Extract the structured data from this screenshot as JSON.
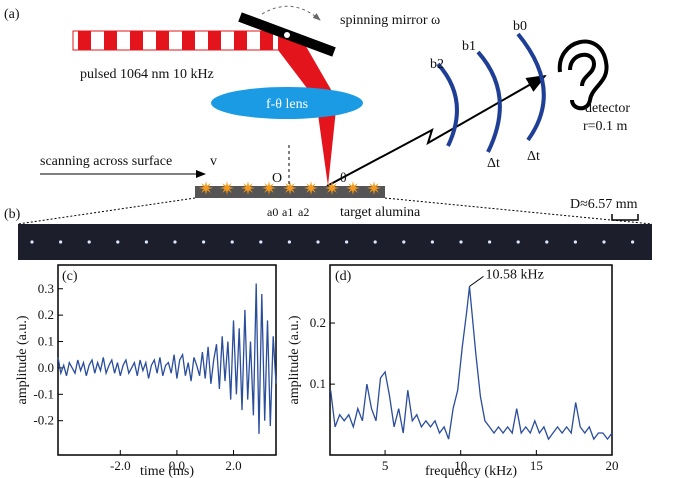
{
  "panel_labels": [
    "(a)",
    "(b)",
    "(c)",
    "(d)"
  ],
  "schematic": {
    "mirror": "spinning mirror ω",
    "laser": "pulsed 1064 nm 10 kHz",
    "lens": "f-θ lens",
    "scan": "scanning across surface",
    "velocity": "v",
    "origin": "O",
    "angle": "θ",
    "sites": [
      "a0",
      "a1",
      "a2"
    ],
    "target": "target alumina",
    "wavefronts": [
      "b2",
      "b1",
      "b0"
    ],
    "delays": [
      "Δt",
      "Δt"
    ],
    "detector": "detector",
    "distance": "r=0.1 m",
    "scale": "D≈6.57 mm"
  },
  "chart_data": [
    {
      "type": "line",
      "xlabel": "time (ms)",
      "ylabel": "amplitude (a.u.)",
      "color": "#2a4d9c",
      "xlim": [
        -4.2,
        3.5
      ],
      "ylim": [
        -0.33,
        0.39
      ],
      "xticks": [
        {
          "value": -2,
          "label": "-2.0"
        },
        {
          "value": 0,
          "label": "0.0"
        },
        {
          "value": 2,
          "label": "2.0"
        }
      ],
      "yticks": [
        0.3,
        0.2,
        0.1,
        {
          "value": 0,
          "label": "0.0"
        },
        -0.1,
        -0.2
      ],
      "x": [
        -4.2,
        -4.1,
        -4.0,
        -3.9,
        -3.8,
        -3.7,
        -3.6,
        -3.5,
        -3.4,
        -3.3,
        -3.2,
        -3.1,
        -3.0,
        -2.9,
        -2.8,
        -2.7,
        -2.6,
        -2.5,
        -2.4,
        -2.3,
        -2.2,
        -2.1,
        -2.0,
        -1.9,
        -1.8,
        -1.7,
        -1.6,
        -1.5,
        -1.4,
        -1.3,
        -1.2,
        -1.1,
        -1.0,
        -0.9,
        -0.8,
        -0.7,
        -0.6,
        -0.5,
        -0.4,
        -0.3,
        -0.2,
        -0.1,
        0.0,
        0.1,
        0.2,
        0.3,
        0.4,
        0.5,
        0.6,
        0.7,
        0.8,
        0.9,
        1.0,
        1.1,
        1.2,
        1.3,
        1.4,
        1.5,
        1.6,
        1.7,
        1.8,
        1.9,
        2.0,
        2.1,
        2.2,
        2.3,
        2.4,
        2.5,
        2.6,
        2.7,
        2.8,
        2.9,
        3.0,
        3.1,
        3.2,
        3.3,
        3.4,
        3.5
      ],
      "values": [
        0.04,
        -0.02,
        0.01,
        -0.03,
        0.02,
        0.0,
        -0.02,
        0.03,
        -0.01,
        0.02,
        -0.03,
        0.01,
        0.03,
        -0.02,
        0.02,
        -0.01,
        0.04,
        -0.02,
        0.01,
        0.03,
        -0.02,
        0.02,
        -0.03,
        0.01,
        0.03,
        -0.02,
        0.0,
        0.02,
        -0.03,
        0.03,
        -0.01,
        0.02,
        -0.04,
        0.01,
        0.03,
        -0.02,
        0.04,
        -0.03,
        0.01,
        0.02,
        -0.02,
        0.05,
        -0.04,
        0.03,
        0.05,
        -0.03,
        0.02,
        -0.05,
        0.04,
        0.01,
        -0.03,
        0.06,
        -0.04,
        0.08,
        -0.06,
        0.03,
        0.09,
        -0.08,
        0.12,
        -0.05,
        0.1,
        -0.12,
        0.18,
        -0.1,
        0.15,
        -0.16,
        0.22,
        -0.12,
        0.1,
        -0.18,
        0.32,
        -0.25,
        0.28,
        -0.2,
        0.18,
        -0.22,
        0.12,
        -0.06
      ]
    },
    {
      "type": "line",
      "xlabel": "frequency (kHz)",
      "ylabel": "amplitude (a.u.)",
      "color": "#2a4d9c",
      "annotation": "10.58 kHz",
      "xlim": [
        1.36,
        20
      ],
      "ylim": [
        -0.016,
        0.295
      ],
      "xticks": [
        5,
        10,
        15,
        20
      ],
      "yticks": [
        0.1,
        0.2
      ],
      "x": [
        1.4,
        1.7,
        2.0,
        2.3,
        2.6,
        2.9,
        3.2,
        3.5,
        3.8,
        4.1,
        4.4,
        4.7,
        5.0,
        5.3,
        5.6,
        5.9,
        6.2,
        6.5,
        6.8,
        7.1,
        7.4,
        7.7,
        8.0,
        8.3,
        8.6,
        8.9,
        9.2,
        9.5,
        9.8,
        10.1,
        10.4,
        10.58,
        11.0,
        11.3,
        11.6,
        11.9,
        12.2,
        12.5,
        12.8,
        13.1,
        13.4,
        13.7,
        14.0,
        14.3,
        14.6,
        14.9,
        15.2,
        15.5,
        15.8,
        16.1,
        16.4,
        16.7,
        17.0,
        17.3,
        17.6,
        17.9,
        18.2,
        18.5,
        18.8,
        19.1,
        19.4,
        19.7,
        20.0
      ],
      "values": [
        0.09,
        0.03,
        0.05,
        0.04,
        0.05,
        0.03,
        0.06,
        0.04,
        0.1,
        0.06,
        0.04,
        0.11,
        0.12,
        0.08,
        0.03,
        0.06,
        0.02,
        0.09,
        0.04,
        0.05,
        0.03,
        0.04,
        0.03,
        0.04,
        0.02,
        0.03,
        0.01,
        0.06,
        0.09,
        0.16,
        0.22,
        0.26,
        0.15,
        0.08,
        0.04,
        0.03,
        0.02,
        0.03,
        0.02,
        0.03,
        0.02,
        0.06,
        0.02,
        0.03,
        0.02,
        0.04,
        0.02,
        0.03,
        0.01,
        0.02,
        0.03,
        0.02,
        0.03,
        0.02,
        0.07,
        0.03,
        0.02,
        0.03,
        0.01,
        0.02,
        0.02,
        0.01,
        0.02
      ]
    }
  ]
}
